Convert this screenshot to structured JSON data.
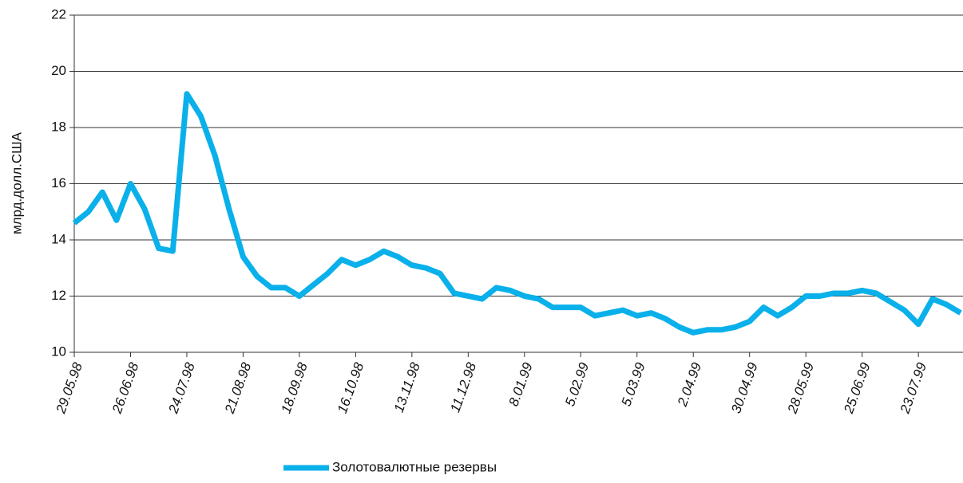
{
  "chart_data": {
    "type": "line",
    "y_label": "млрд.долл.США",
    "categories": [
      "29.05.98",
      null,
      null,
      null,
      "26.06.98",
      null,
      null,
      null,
      "24.07.98",
      null,
      null,
      null,
      "21.08.98",
      null,
      null,
      null,
      "18.09.98",
      null,
      null,
      null,
      "16.10.98",
      null,
      null,
      null,
      "13.11.98",
      null,
      null,
      null,
      "11.12.98",
      null,
      null,
      null,
      "8.01.99",
      null,
      null,
      null,
      "5.02.99",
      null,
      null,
      null,
      "5.03.99",
      null,
      null,
      null,
      "2.04.99",
      null,
      null,
      null,
      "30.04.99",
      null,
      null,
      null,
      "28.05.99",
      null,
      null,
      null,
      "25.06.99",
      null,
      null,
      null,
      "23.07.99",
      null,
      null,
      null
    ],
    "series": [
      {
        "name": "Золотовалютные резервы",
        "color": "#0ab0ea",
        "values": [
          14.6,
          15.0,
          15.7,
          14.7,
          16.0,
          15.1,
          13.7,
          13.6,
          19.2,
          18.4,
          17.0,
          15.1,
          13.4,
          12.7,
          12.3,
          12.3,
          12.0,
          12.4,
          12.8,
          13.3,
          13.1,
          13.3,
          13.6,
          13.4,
          13.1,
          13.0,
          12.8,
          12.1,
          12.0,
          11.9,
          12.3,
          12.2,
          12.0,
          11.9,
          11.6,
          11.6,
          11.6,
          11.3,
          11.4,
          11.5,
          11.3,
          11.4,
          11.2,
          10.9,
          10.7,
          10.8,
          10.8,
          10.9,
          11.1,
          11.6,
          11.3,
          11.6,
          12.0,
          12.0,
          12.1,
          12.1,
          12.2,
          12.1,
          11.8,
          11.5,
          11.0,
          11.9,
          11.7,
          11.4
        ]
      }
    ],
    "ylim": [
      10,
      22
    ],
    "yticks": [
      10,
      12,
      14,
      16,
      18,
      20,
      22
    ],
    "grid": true,
    "legend": "bottom"
  }
}
